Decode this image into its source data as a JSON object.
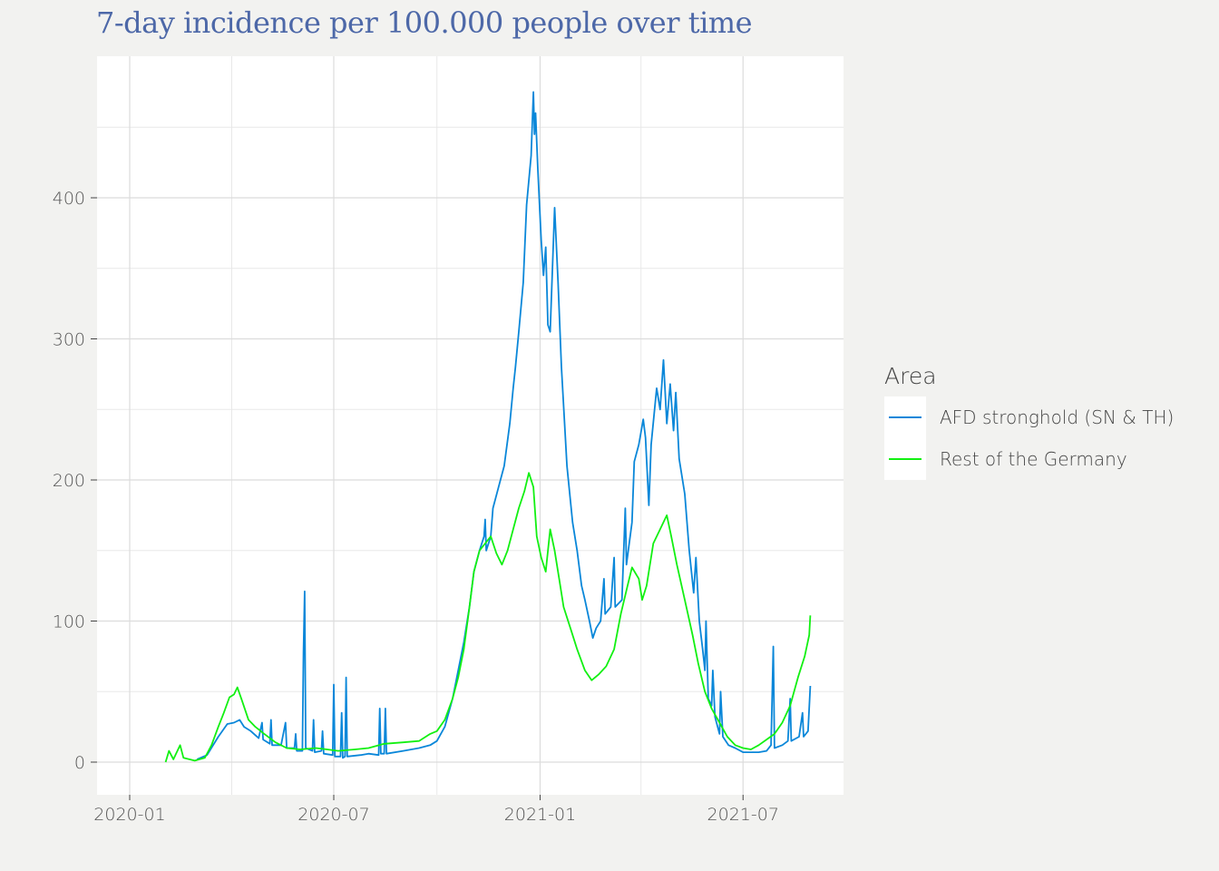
{
  "chart_data": {
    "type": "line",
    "title": "7-day incidence per 100.000 people over time",
    "xlabel": "",
    "ylabel": "",
    "xlim": [
      "2020-01-01",
      "2021-09-10"
    ],
    "ylim": [
      -23,
      500
    ],
    "grid": true,
    "y_ticks": [
      "0",
      "100",
      "200",
      "300",
      "400"
    ],
    "y_tick_values": [
      0,
      100,
      200,
      300,
      400
    ],
    "x_ticks": [
      "2020-01",
      "2020-07",
      "2021-01",
      "2021-07"
    ],
    "x_tick_values": [
      "2020-01-01",
      "2020-07-01",
      "2021-01-01",
      "2021-07-01"
    ],
    "legend": {
      "title": "Area",
      "placement": "right"
    },
    "series": [
      {
        "name": "AFD stronghold (SN & TH)",
        "color": "#0a87d9",
        "points": [
          [
            "2020-03-01",
            2
          ],
          [
            "2020-03-10",
            5
          ],
          [
            "2020-03-20",
            18
          ],
          [
            "2020-03-28",
            27
          ],
          [
            "2020-04-03",
            28
          ],
          [
            "2020-04-08",
            30
          ],
          [
            "2020-04-12",
            25
          ],
          [
            "2020-04-18",
            22
          ],
          [
            "2020-04-25",
            17
          ],
          [
            "2020-04-28",
            28
          ],
          [
            "2020-04-29",
            16
          ],
          [
            "2020-05-05",
            13
          ],
          [
            "2020-05-06",
            30
          ],
          [
            "2020-05-07",
            12
          ],
          [
            "2020-05-15",
            12
          ],
          [
            "2020-05-19",
            28
          ],
          [
            "2020-05-20",
            10
          ],
          [
            "2020-05-27",
            10
          ],
          [
            "2020-05-28",
            20
          ],
          [
            "2020-05-29",
            8
          ],
          [
            "2020-06-03",
            8
          ],
          [
            "2020-06-04",
            78
          ],
          [
            "2020-06-05",
            121
          ],
          [
            "2020-06-06",
            10
          ],
          [
            "2020-06-12",
            8
          ],
          [
            "2020-06-13",
            30
          ],
          [
            "2020-06-14",
            7
          ],
          [
            "2020-06-20",
            8
          ],
          [
            "2020-06-21",
            22
          ],
          [
            "2020-06-22",
            6
          ],
          [
            "2020-06-30",
            5
          ],
          [
            "2020-07-01",
            55
          ],
          [
            "2020-07-02",
            4
          ],
          [
            "2020-07-07",
            4
          ],
          [
            "2020-07-08",
            35
          ],
          [
            "2020-07-09",
            3
          ],
          [
            "2020-07-11",
            4
          ],
          [
            "2020-07-12",
            60
          ],
          [
            "2020-07-13",
            4
          ],
          [
            "2020-07-25",
            5
          ],
          [
            "2020-08-01",
            6
          ],
          [
            "2020-08-10",
            5
          ],
          [
            "2020-08-11",
            38
          ],
          [
            "2020-08-12",
            6
          ],
          [
            "2020-08-15",
            6
          ],
          [
            "2020-08-16",
            38
          ],
          [
            "2020-08-17",
            6
          ],
          [
            "2020-09-01",
            8
          ],
          [
            "2020-09-15",
            10
          ],
          [
            "2020-09-25",
            12
          ],
          [
            "2020-10-01",
            15
          ],
          [
            "2020-10-08",
            25
          ],
          [
            "2020-10-15",
            45
          ],
          [
            "2020-10-20",
            65
          ],
          [
            "2020-10-25",
            85
          ],
          [
            "2020-10-30",
            110
          ],
          [
            "2020-11-03",
            135
          ],
          [
            "2020-11-08",
            150
          ],
          [
            "2020-11-12",
            160
          ],
          [
            "2020-11-13",
            172
          ],
          [
            "2020-11-14",
            150
          ],
          [
            "2020-11-18",
            160
          ],
          [
            "2020-11-20",
            180
          ],
          [
            "2020-11-25",
            195
          ],
          [
            "2020-11-30",
            210
          ],
          [
            "2020-12-05",
            240
          ],
          [
            "2020-12-08",
            265
          ],
          [
            "2020-12-10",
            280
          ],
          [
            "2020-12-13",
            305
          ],
          [
            "2020-12-17",
            340
          ],
          [
            "2020-12-20",
            395
          ],
          [
            "2020-12-24",
            430
          ],
          [
            "2020-12-26",
            475
          ],
          [
            "2020-12-27",
            445
          ],
          [
            "2020-12-28",
            460
          ],
          [
            "2020-12-30",
            420
          ],
          [
            "2021-01-02",
            370
          ],
          [
            "2021-01-04",
            345
          ],
          [
            "2021-01-06",
            365
          ],
          [
            "2021-01-08",
            310
          ],
          [
            "2021-01-10",
            305
          ],
          [
            "2021-01-12",
            350
          ],
          [
            "2021-01-14",
            393
          ],
          [
            "2021-01-17",
            340
          ],
          [
            "2021-01-20",
            280
          ],
          [
            "2021-01-25",
            210
          ],
          [
            "2021-01-30",
            170
          ],
          [
            "2021-02-03",
            150
          ],
          [
            "2021-02-07",
            125
          ],
          [
            "2021-02-10",
            115
          ],
          [
            "2021-02-14",
            100
          ],
          [
            "2021-02-17",
            88
          ],
          [
            "2021-02-20",
            95
          ],
          [
            "2021-02-24",
            100
          ],
          [
            "2021-02-27",
            130
          ],
          [
            "2021-02-28",
            105
          ],
          [
            "2021-03-05",
            110
          ],
          [
            "2021-03-08",
            145
          ],
          [
            "2021-03-09",
            110
          ],
          [
            "2021-03-15",
            115
          ],
          [
            "2021-03-18",
            180
          ],
          [
            "2021-03-19",
            140
          ],
          [
            "2021-03-24",
            170
          ],
          [
            "2021-03-26",
            213
          ],
          [
            "2021-03-30",
            225
          ],
          [
            "2021-04-03",
            243
          ],
          [
            "2021-04-05",
            230
          ],
          [
            "2021-04-08",
            182
          ],
          [
            "2021-04-10",
            225
          ],
          [
            "2021-04-15",
            265
          ],
          [
            "2021-04-18",
            250
          ],
          [
            "2021-04-21",
            285
          ],
          [
            "2021-04-24",
            240
          ],
          [
            "2021-04-27",
            268
          ],
          [
            "2021-04-30",
            235
          ],
          [
            "2021-05-02",
            262
          ],
          [
            "2021-05-05",
            215
          ],
          [
            "2021-05-10",
            190
          ],
          [
            "2021-05-14",
            150
          ],
          [
            "2021-05-18",
            120
          ],
          [
            "2021-05-20",
            145
          ],
          [
            "2021-05-23",
            100
          ],
          [
            "2021-05-26",
            80
          ],
          [
            "2021-05-28",
            65
          ],
          [
            "2021-05-29",
            100
          ],
          [
            "2021-05-31",
            45
          ],
          [
            "2021-06-03",
            40
          ],
          [
            "2021-06-04",
            65
          ],
          [
            "2021-06-06",
            32
          ],
          [
            "2021-06-10",
            20
          ],
          [
            "2021-06-11",
            50
          ],
          [
            "2021-06-13",
            18
          ],
          [
            "2021-06-18",
            12
          ],
          [
            "2021-06-24",
            10
          ],
          [
            "2021-07-01",
            7
          ],
          [
            "2021-07-08",
            7
          ],
          [
            "2021-07-15",
            7
          ],
          [
            "2021-07-22",
            8
          ],
          [
            "2021-07-26",
            12
          ],
          [
            "2021-07-28",
            82
          ],
          [
            "2021-07-29",
            10
          ],
          [
            "2021-08-05",
            12
          ],
          [
            "2021-08-10",
            15
          ],
          [
            "2021-08-12",
            45
          ],
          [
            "2021-08-13",
            15
          ],
          [
            "2021-08-20",
            18
          ],
          [
            "2021-08-23",
            35
          ],
          [
            "2021-08-24",
            18
          ],
          [
            "2021-08-28",
            22
          ],
          [
            "2021-08-30",
            54
          ]
        ]
      },
      {
        "name": "Rest of the Germany",
        "color": "#12f012",
        "points": [
          [
            "2020-02-02",
            0
          ],
          [
            "2020-02-05",
            8
          ],
          [
            "2020-02-09",
            2
          ],
          [
            "2020-02-15",
            12
          ],
          [
            "2020-02-18",
            3
          ],
          [
            "2020-02-28",
            1
          ],
          [
            "2020-03-08",
            3
          ],
          [
            "2020-03-14",
            12
          ],
          [
            "2020-03-20",
            25
          ],
          [
            "2020-03-25",
            35
          ],
          [
            "2020-03-30",
            46
          ],
          [
            "2020-04-03",
            48
          ],
          [
            "2020-04-06",
            53
          ],
          [
            "2020-04-10",
            44
          ],
          [
            "2020-04-16",
            30
          ],
          [
            "2020-04-22",
            25
          ],
          [
            "2020-04-30",
            20
          ],
          [
            "2020-05-10",
            14
          ],
          [
            "2020-05-20",
            10
          ],
          [
            "2020-06-01",
            9
          ],
          [
            "2020-06-15",
            10
          ],
          [
            "2020-06-25",
            9
          ],
          [
            "2020-07-05",
            8
          ],
          [
            "2020-07-20",
            9
          ],
          [
            "2020-08-01",
            10
          ],
          [
            "2020-08-15",
            13
          ],
          [
            "2020-09-01",
            14
          ],
          [
            "2020-09-15",
            15
          ],
          [
            "2020-09-25",
            20
          ],
          [
            "2020-10-01",
            22
          ],
          [
            "2020-10-08",
            30
          ],
          [
            "2020-10-15",
            45
          ],
          [
            "2020-10-20",
            60
          ],
          [
            "2020-10-25",
            80
          ],
          [
            "2020-10-30",
            110
          ],
          [
            "2020-11-03",
            135
          ],
          [
            "2020-11-08",
            150
          ],
          [
            "2020-11-13",
            155
          ],
          [
            "2020-11-18",
            160
          ],
          [
            "2020-11-23",
            148
          ],
          [
            "2020-11-28",
            140
          ],
          [
            "2020-12-03",
            150
          ],
          [
            "2020-12-08",
            165
          ],
          [
            "2020-12-13",
            180
          ],
          [
            "2020-12-18",
            192
          ],
          [
            "2020-12-22",
            205
          ],
          [
            "2020-12-26",
            195
          ],
          [
            "2020-12-29",
            160
          ],
          [
            "2021-01-02",
            145
          ],
          [
            "2021-01-06",
            135
          ],
          [
            "2021-01-10",
            165
          ],
          [
            "2021-01-14",
            150
          ],
          [
            "2021-01-18",
            130
          ],
          [
            "2021-01-22",
            110
          ],
          [
            "2021-01-28",
            95
          ],
          [
            "2021-02-03",
            80
          ],
          [
            "2021-02-10",
            65
          ],
          [
            "2021-02-16",
            58
          ],
          [
            "2021-02-22",
            62
          ],
          [
            "2021-03-01",
            68
          ],
          [
            "2021-03-08",
            80
          ],
          [
            "2021-03-14",
            105
          ],
          [
            "2021-03-20",
            125
          ],
          [
            "2021-03-24",
            138
          ],
          [
            "2021-03-30",
            130
          ],
          [
            "2021-04-02",
            115
          ],
          [
            "2021-04-06",
            125
          ],
          [
            "2021-04-12",
            155
          ],
          [
            "2021-04-18",
            165
          ],
          [
            "2021-04-24",
            175
          ],
          [
            "2021-04-28",
            160
          ],
          [
            "2021-05-03",
            140
          ],
          [
            "2021-05-10",
            115
          ],
          [
            "2021-05-17",
            90
          ],
          [
            "2021-05-22",
            70
          ],
          [
            "2021-05-28",
            50
          ],
          [
            "2021-06-03",
            38
          ],
          [
            "2021-06-10",
            28
          ],
          [
            "2021-06-17",
            18
          ],
          [
            "2021-06-24",
            12
          ],
          [
            "2021-07-01",
            10
          ],
          [
            "2021-07-08",
            9
          ],
          [
            "2021-07-15",
            12
          ],
          [
            "2021-07-22",
            16
          ],
          [
            "2021-07-29",
            20
          ],
          [
            "2021-08-05",
            28
          ],
          [
            "2021-08-12",
            40
          ],
          [
            "2021-08-19",
            60
          ],
          [
            "2021-08-25",
            75
          ],
          [
            "2021-08-29",
            90
          ],
          [
            "2021-08-30",
            104
          ]
        ]
      }
    ]
  }
}
